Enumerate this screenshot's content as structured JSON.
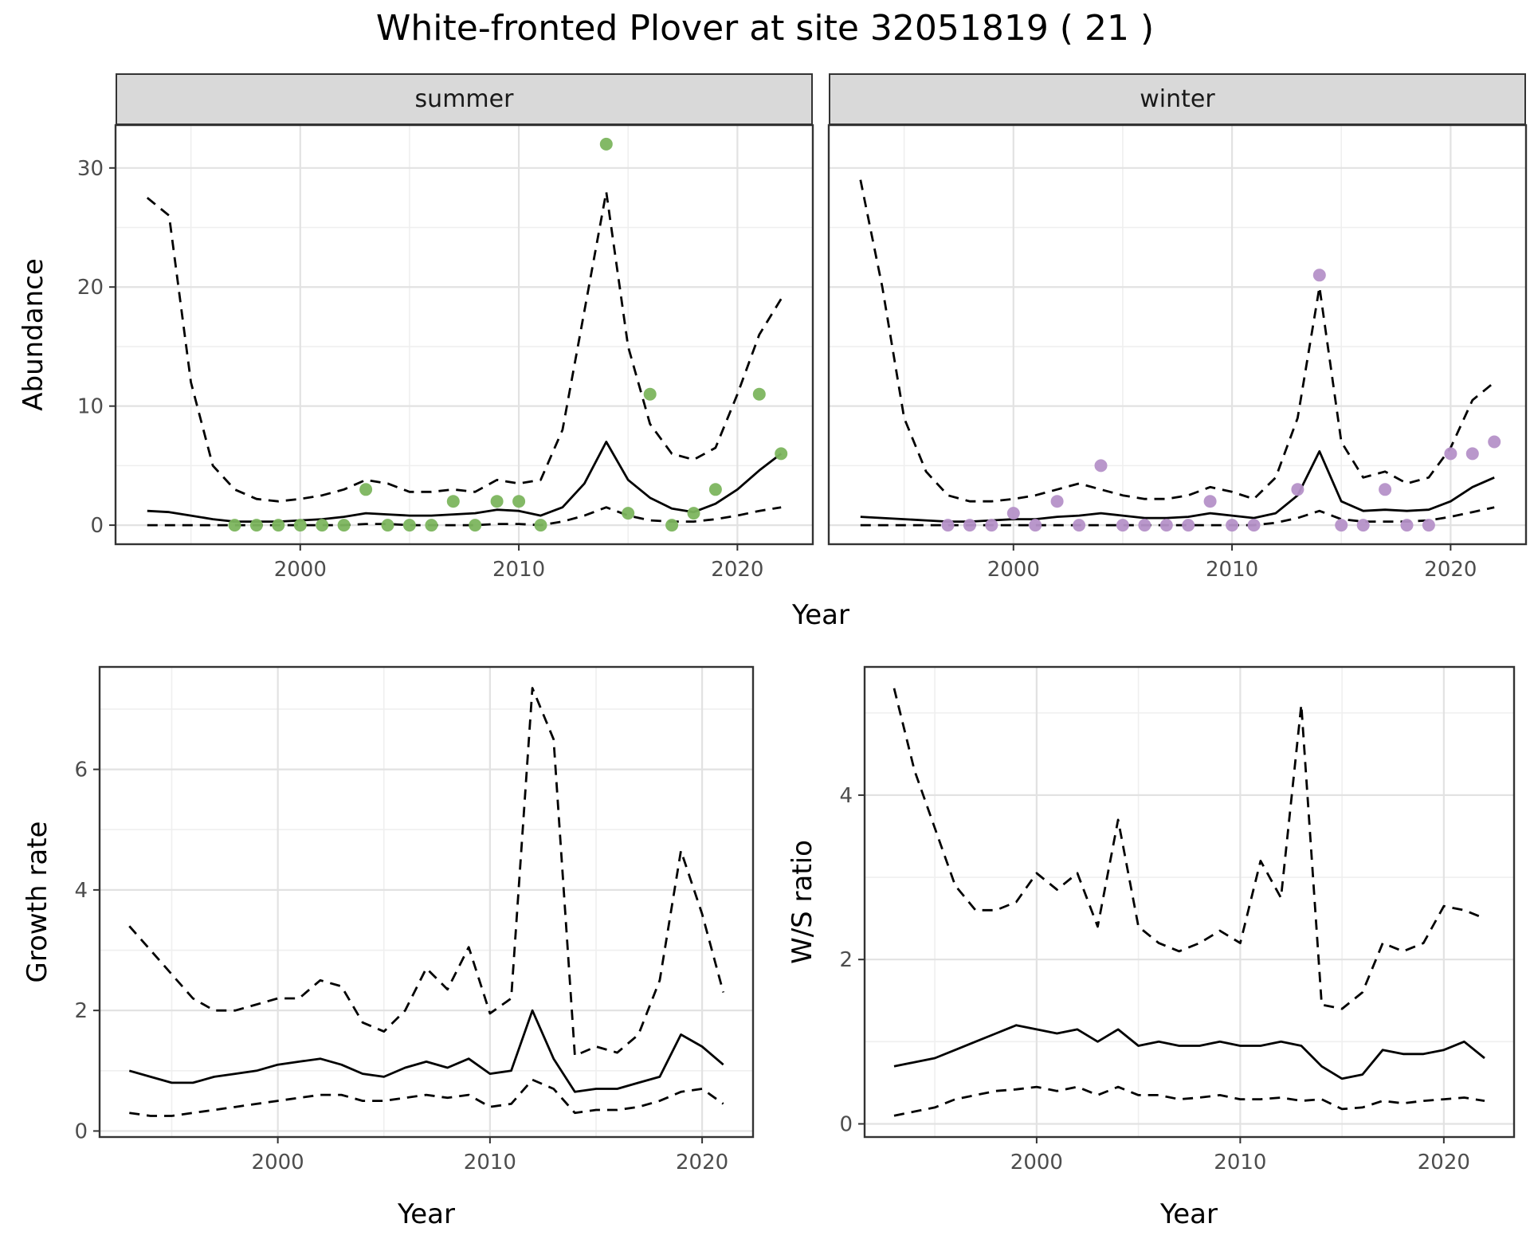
{
  "title": "White-fronted Plover at site 32051819 ( 21 )",
  "colors": {
    "line": "#000000",
    "summer_points": "#7cb55e",
    "winter_points": "#b591c8",
    "strip_fill": "#d9d9d9",
    "strip_border": "#333333",
    "panel_border": "#333333",
    "panel_background": "#ffffff",
    "grid_major": "#e2e2e2",
    "grid_minor": "#efefef",
    "axis_text": "#4d4d4d",
    "tick_mark": "#333333"
  },
  "chart_data": [
    {
      "id": "abundance-summer",
      "type": "line",
      "facet_label": "summer",
      "ylabel": "Abundance",
      "xlabel": "Year",
      "xlim": [
        1991.55,
        2023.45
      ],
      "ylim": [
        -1.6,
        33.6
      ],
      "xticks": [
        2000,
        2010,
        2020
      ],
      "yticks": [
        0,
        10,
        20,
        30
      ],
      "xticks_minor": [
        1995,
        2005,
        2015
      ],
      "yticks_minor": [
        5,
        15,
        25
      ],
      "grid": true,
      "legend": "none",
      "years": [
        1993,
        1994,
        1995,
        1996,
        1997,
        1998,
        1999,
        2000,
        2001,
        2002,
        2003,
        2004,
        2005,
        2006,
        2007,
        2008,
        2009,
        2010,
        2011,
        2012,
        2013,
        2014,
        2015,
        2016,
        2017,
        2018,
        2019,
        2020,
        2021,
        2022
      ],
      "series": [
        {
          "name": "model-fit",
          "style": "solid",
          "values": [
            1.2,
            1.1,
            0.8,
            0.5,
            0.3,
            0.3,
            0.3,
            0.4,
            0.5,
            0.7,
            1.0,
            0.9,
            0.8,
            0.8,
            0.9,
            1.0,
            1.3,
            1.2,
            0.8,
            1.5,
            3.5,
            7.0,
            3.8,
            2.3,
            1.4,
            1.1,
            1.8,
            3.0,
            4.6,
            6.0
          ]
        },
        {
          "name": "upper-ci",
          "style": "dashed",
          "values": [
            27.5,
            26.0,
            12.0,
            5.0,
            3.0,
            2.2,
            2.0,
            2.2,
            2.5,
            3.0,
            3.8,
            3.5,
            2.8,
            2.8,
            3.0,
            2.8,
            3.8,
            3.5,
            3.8,
            8.0,
            18.0,
            28.0,
            15.0,
            8.5,
            6.0,
            5.5,
            6.5,
            11.0,
            16.0,
            19.0
          ]
        },
        {
          "name": "lower-ci",
          "style": "dashed",
          "values": [
            0,
            0,
            0,
            0,
            0,
            0,
            0,
            0,
            0,
            0,
            0.1,
            0.1,
            0,
            0,
            0,
            0,
            0.1,
            0.1,
            0,
            0.3,
            0.8,
            1.5,
            0.8,
            0.4,
            0.3,
            0.3,
            0.5,
            0.8,
            1.2,
            1.5
          ]
        }
      ],
      "points": {
        "name": "observed-counts-summer",
        "color": "#7cb55e",
        "years": [
          1997,
          1998,
          1999,
          2000,
          2001,
          2002,
          2003,
          2004,
          2005,
          2006,
          2007,
          2008,
          2009,
          2010,
          2011,
          2014,
          2015,
          2016,
          2017,
          2018,
          2019,
          2021,
          2022
        ],
        "values": [
          0,
          0,
          0,
          0,
          0,
          0,
          3,
          0,
          0,
          0,
          2,
          0,
          2,
          2,
          0,
          32,
          1,
          11,
          0,
          1,
          3,
          11,
          6
        ]
      }
    },
    {
      "id": "abundance-winter",
      "type": "line",
      "facet_label": "winter",
      "ylabel": "Abundance",
      "xlabel": "Year",
      "xlim": [
        1991.55,
        2023.45
      ],
      "ylim": [
        -1.6,
        33.6
      ],
      "xticks": [
        2000,
        2010,
        2020
      ],
      "yticks": [
        0,
        10,
        20,
        30
      ],
      "xticks_minor": [
        1995,
        2005,
        2015
      ],
      "yticks_minor": [
        5,
        15,
        25
      ],
      "grid": true,
      "legend": "none",
      "years": [
        1993,
        1994,
        1995,
        1996,
        1997,
        1998,
        1999,
        2000,
        2001,
        2002,
        2003,
        2004,
        2005,
        2006,
        2007,
        2008,
        2009,
        2010,
        2011,
        2012,
        2013,
        2014,
        2015,
        2016,
        2017,
        2018,
        2019,
        2020,
        2021,
        2022
      ],
      "series": [
        {
          "name": "model-fit",
          "style": "solid",
          "values": [
            0.7,
            0.6,
            0.5,
            0.4,
            0.3,
            0.3,
            0.4,
            0.5,
            0.5,
            0.7,
            0.8,
            1.0,
            0.8,
            0.6,
            0.6,
            0.7,
            1.0,
            0.8,
            0.6,
            1.0,
            2.5,
            6.2,
            2.0,
            1.2,
            1.3,
            1.2,
            1.3,
            2.0,
            3.2,
            4.0
          ]
        },
        {
          "name": "upper-ci",
          "style": "dashed",
          "values": [
            29.0,
            20.0,
            9.0,
            4.5,
            2.5,
            2.0,
            2.0,
            2.2,
            2.5,
            3.0,
            3.5,
            3.0,
            2.5,
            2.2,
            2.2,
            2.5,
            3.2,
            2.8,
            2.2,
            4.0,
            9.0,
            20.0,
            7.0,
            4.0,
            4.5,
            3.5,
            4.0,
            6.5,
            10.5,
            12.0
          ]
        },
        {
          "name": "lower-ci",
          "style": "dashed",
          "values": [
            0,
            0,
            0,
            0,
            0,
            0,
            0,
            0,
            0,
            0,
            0,
            0,
            0,
            0,
            0,
            0,
            0,
            0,
            0,
            0.2,
            0.6,
            1.2,
            0.5,
            0.3,
            0.3,
            0.3,
            0.4,
            0.7,
            1.1,
            1.5
          ]
        }
      ],
      "points": {
        "name": "observed-counts-winter",
        "color": "#b591c8",
        "years": [
          1997,
          1998,
          1999,
          2000,
          2001,
          2002,
          2003,
          2004,
          2005,
          2006,
          2007,
          2008,
          2009,
          2010,
          2011,
          2013,
          2014,
          2015,
          2016,
          2017,
          2018,
          2019,
          2020,
          2021,
          2022
        ],
        "values": [
          0,
          0,
          0,
          1,
          0,
          2,
          0,
          5,
          0,
          0,
          0,
          0,
          2,
          0,
          0,
          3,
          21,
          0,
          0,
          3,
          0,
          0,
          6,
          6,
          7
        ]
      }
    },
    {
      "id": "growth-rate",
      "type": "line",
      "facet_label": "",
      "ylabel": "Growth rate",
      "xlabel": "Year",
      "xlim": [
        1991.6,
        2022.4
      ],
      "ylim": [
        -0.1,
        7.7
      ],
      "xticks": [
        2000,
        2010,
        2020
      ],
      "yticks": [
        0,
        2,
        4,
        6
      ],
      "xticks_minor": [
        1995,
        2005,
        2015
      ],
      "yticks_minor": [
        1,
        3,
        5,
        7
      ],
      "grid": true,
      "legend": "none",
      "years": [
        1993,
        1994,
        1995,
        1996,
        1997,
        1998,
        1999,
        2000,
        2001,
        2002,
        2003,
        2004,
        2005,
        2006,
        2007,
        2008,
        2009,
        2010,
        2011,
        2012,
        2013,
        2014,
        2015,
        2016,
        2017,
        2018,
        2019,
        2020,
        2021
      ],
      "series": [
        {
          "name": "model-fit",
          "style": "solid",
          "values": [
            1.0,
            0.9,
            0.8,
            0.8,
            0.9,
            0.95,
            1.0,
            1.1,
            1.15,
            1.2,
            1.1,
            0.95,
            0.9,
            1.05,
            1.15,
            1.05,
            1.2,
            0.95,
            1.0,
            2.0,
            1.2,
            0.65,
            0.7,
            0.7,
            0.8,
            0.9,
            1.6,
            1.4,
            1.1
          ]
        },
        {
          "name": "upper-ci",
          "style": "dashed",
          "values": [
            3.4,
            3.0,
            2.6,
            2.2,
            2.0,
            2.0,
            2.1,
            2.2,
            2.2,
            2.5,
            2.4,
            1.8,
            1.65,
            2.0,
            2.7,
            2.35,
            3.05,
            1.95,
            2.2,
            7.35,
            6.5,
            1.25,
            1.4,
            1.3,
            1.6,
            2.5,
            4.65,
            3.6,
            2.3
          ]
        },
        {
          "name": "lower-ci",
          "style": "dashed",
          "values": [
            0.3,
            0.25,
            0.25,
            0.3,
            0.35,
            0.4,
            0.45,
            0.5,
            0.55,
            0.6,
            0.6,
            0.5,
            0.5,
            0.55,
            0.6,
            0.55,
            0.6,
            0.4,
            0.45,
            0.85,
            0.7,
            0.3,
            0.35,
            0.35,
            0.4,
            0.5,
            0.65,
            0.7,
            0.45
          ]
        }
      ],
      "points": null
    },
    {
      "id": "ws-ratio",
      "type": "line",
      "facet_label": "",
      "ylabel": "W/S ratio",
      "xlabel": "Year",
      "xlim": [
        1991.55,
        2023.45
      ],
      "ylim": [
        -0.16,
        5.56
      ],
      "xticks": [
        2000,
        2010,
        2020
      ],
      "yticks": [
        0,
        2,
        4
      ],
      "xticks_minor": [
        1995,
        2005,
        2015
      ],
      "yticks_minor": [
        1,
        3,
        5
      ],
      "grid": true,
      "legend": "none",
      "years": [
        1993,
        1994,
        1995,
        1996,
        1997,
        1998,
        1999,
        2000,
        2001,
        2002,
        2003,
        2004,
        2005,
        2006,
        2007,
        2008,
        2009,
        2010,
        2011,
        2012,
        2013,
        2014,
        2015,
        2016,
        2017,
        2018,
        2019,
        2020,
        2021,
        2022
      ],
      "series": [
        {
          "name": "model-fit",
          "style": "solid",
          "values": [
            0.7,
            0.75,
            0.8,
            0.9,
            1.0,
            1.1,
            1.2,
            1.15,
            1.1,
            1.15,
            1.0,
            1.15,
            0.95,
            1.0,
            0.95,
            0.95,
            1.0,
            0.95,
            0.95,
            1.0,
            0.95,
            0.7,
            0.55,
            0.6,
            0.9,
            0.85,
            0.85,
            0.9,
            1.0,
            0.8
          ]
        },
        {
          "name": "upper-ci",
          "style": "dashed",
          "values": [
            5.3,
            4.3,
            3.6,
            2.9,
            2.6,
            2.6,
            2.7,
            3.05,
            2.85,
            3.05,
            2.4,
            3.7,
            2.4,
            2.2,
            2.1,
            2.2,
            2.35,
            2.2,
            3.2,
            2.75,
            5.1,
            1.45,
            1.4,
            1.6,
            2.2,
            2.1,
            2.2,
            2.65,
            2.6,
            2.5
          ]
        },
        {
          "name": "lower-ci",
          "style": "dashed",
          "values": [
            0.1,
            0.15,
            0.2,
            0.3,
            0.35,
            0.4,
            0.42,
            0.45,
            0.4,
            0.45,
            0.35,
            0.45,
            0.35,
            0.35,
            0.3,
            0.32,
            0.35,
            0.3,
            0.3,
            0.32,
            0.28,
            0.3,
            0.18,
            0.2,
            0.28,
            0.25,
            0.28,
            0.3,
            0.32,
            0.28
          ]
        }
      ],
      "points": null
    }
  ]
}
